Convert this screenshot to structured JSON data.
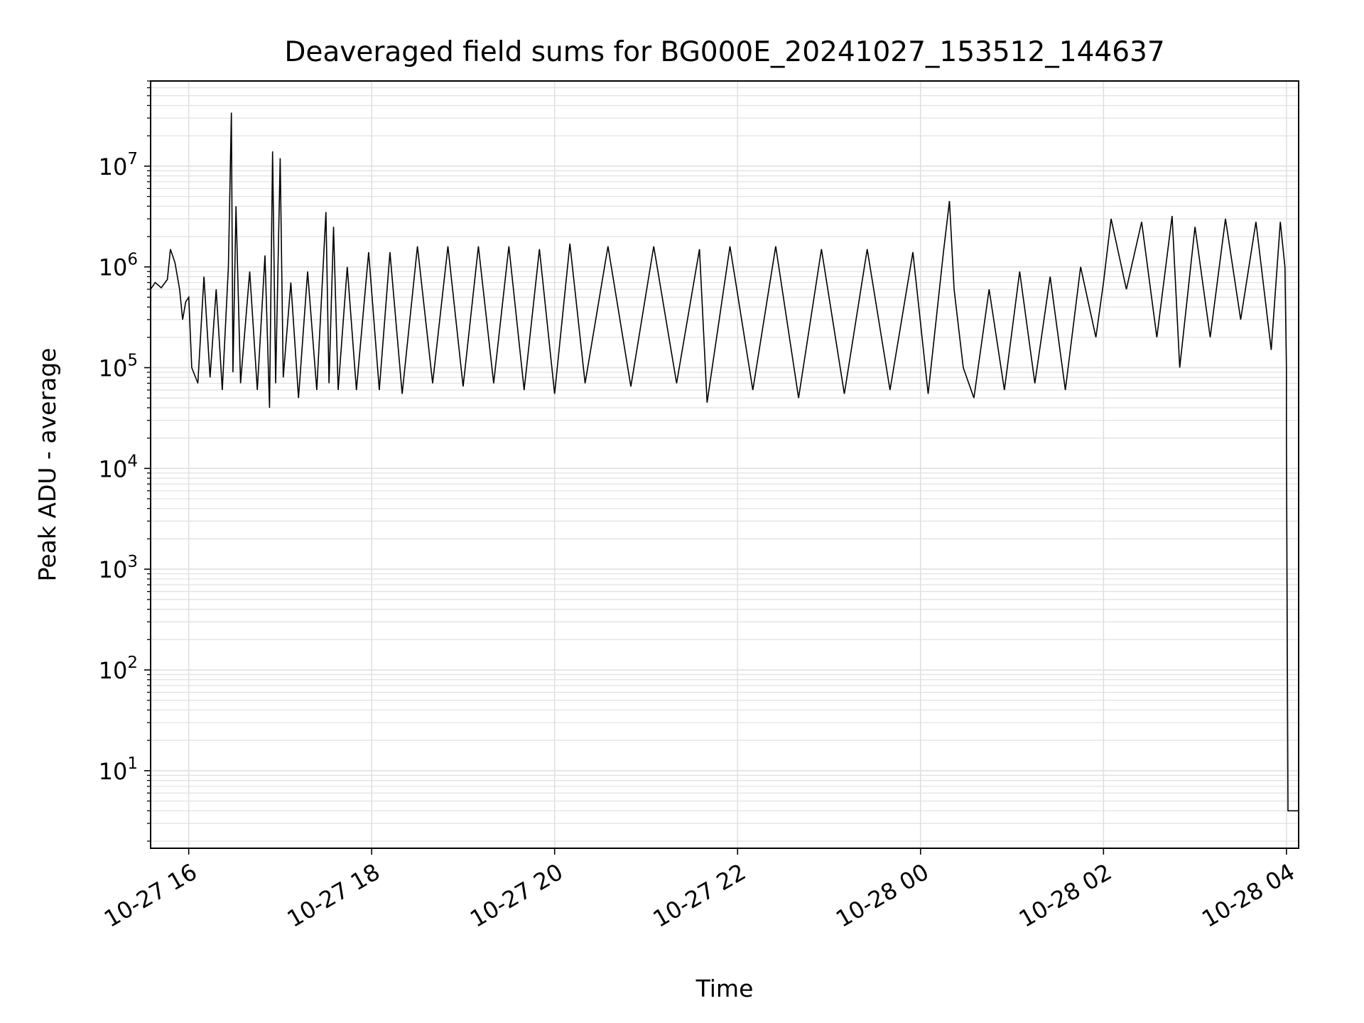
{
  "chart_data": {
    "type": "line",
    "title": "Deaveraged field sums for BG000E_20241027_153512_144637",
    "xlabel": "Time",
    "ylabel": "Peak ADU - average",
    "y_scale": "log",
    "grid": true,
    "legend": "none",
    "line_color": "#000000",
    "grid_color": "#e0e0e0",
    "xlim": [
      "2024-10-27 15:35",
      "2024-10-28 04:08"
    ],
    "ylim": [
      1.7,
      70000000
    ],
    "x_ticks": [
      {
        "value": "2024-10-27 16:00",
        "label": "10-27 16"
      },
      {
        "value": "2024-10-27 18:00",
        "label": "10-27 18"
      },
      {
        "value": "2024-10-27 20:00",
        "label": "10-27 20"
      },
      {
        "value": "2024-10-27 22:00",
        "label": "10-27 22"
      },
      {
        "value": "2024-10-28 00:00",
        "label": "10-28 00"
      },
      {
        "value": "2024-10-28 02:00",
        "label": "10-28 02"
      },
      {
        "value": "2024-10-28 04:00",
        "label": "10-28 04"
      }
    ],
    "y_ticks": [
      {
        "value": 10,
        "base": "10",
        "exp": "1"
      },
      {
        "value": 100,
        "base": "10",
        "exp": "2"
      },
      {
        "value": 1000,
        "base": "10",
        "exp": "3"
      },
      {
        "value": 10000,
        "base": "10",
        "exp": "4"
      },
      {
        "value": 100000,
        "base": "10",
        "exp": "5"
      },
      {
        "value": 1000000,
        "base": "10",
        "exp": "6"
      },
      {
        "value": 10000000,
        "base": "10",
        "exp": "7"
      }
    ],
    "series": [
      {
        "points": [
          [
            "2024-10-27 15:35",
            600000
          ],
          [
            "2024-10-27 15:38",
            700000
          ],
          [
            "2024-10-27 15:42",
            620000
          ],
          [
            "2024-10-27 15:46",
            750000
          ],
          [
            "2024-10-27 15:48",
            1500000
          ],
          [
            "2024-10-27 15:51",
            1100000
          ],
          [
            "2024-10-27 15:54",
            600000
          ],
          [
            "2024-10-27 15:56",
            300000
          ],
          [
            "2024-10-27 15:58",
            450000
          ],
          [
            "2024-10-27 16:00",
            500000
          ],
          [
            "2024-10-27 16:02",
            100000
          ],
          [
            "2024-10-27 16:06",
            70000
          ],
          [
            "2024-10-27 16:10",
            800000
          ],
          [
            "2024-10-27 16:14",
            80000
          ],
          [
            "2024-10-27 16:18",
            600000
          ],
          [
            "2024-10-27 16:22",
            60000
          ],
          [
            "2024-10-27 16:26",
            1000000
          ],
          [
            "2024-10-27 16:28",
            34000000
          ],
          [
            "2024-10-27 16:29",
            90000
          ],
          [
            "2024-10-27 16:31",
            4000000
          ],
          [
            "2024-10-27 16:34",
            70000
          ],
          [
            "2024-10-27 16:40",
            900000
          ],
          [
            "2024-10-27 16:45",
            60000
          ],
          [
            "2024-10-27 16:50",
            1300000
          ],
          [
            "2024-10-27 16:53",
            40000
          ],
          [
            "2024-10-27 16:55",
            14000000
          ],
          [
            "2024-10-27 16:57",
            70000
          ],
          [
            "2024-10-27 17:00",
            12000000
          ],
          [
            "2024-10-27 17:02",
            80000
          ],
          [
            "2024-10-27 17:07",
            700000
          ],
          [
            "2024-10-27 17:12",
            50000
          ],
          [
            "2024-10-27 17:18",
            900000
          ],
          [
            "2024-10-27 17:24",
            60000
          ],
          [
            "2024-10-27 17:30",
            3500000
          ],
          [
            "2024-10-27 17:32",
            70000
          ],
          [
            "2024-10-27 17:35",
            2500000
          ],
          [
            "2024-10-27 17:38",
            60000
          ],
          [
            "2024-10-27 17:44",
            1000000
          ],
          [
            "2024-10-27 17:50",
            60000
          ],
          [
            "2024-10-27 17:58",
            1400000
          ],
          [
            "2024-10-27 18:05",
            60000
          ],
          [
            "2024-10-27 18:12",
            1400000
          ],
          [
            "2024-10-27 18:20",
            55000
          ],
          [
            "2024-10-27 18:30",
            1600000
          ],
          [
            "2024-10-27 18:40",
            70000
          ],
          [
            "2024-10-27 18:50",
            1600000
          ],
          [
            "2024-10-27 19:00",
            65000
          ],
          [
            "2024-10-27 19:10",
            1600000
          ],
          [
            "2024-10-27 19:20",
            70000
          ],
          [
            "2024-10-27 19:30",
            1600000
          ],
          [
            "2024-10-27 19:40",
            60000
          ],
          [
            "2024-10-27 19:50",
            1500000
          ],
          [
            "2024-10-27 20:00",
            55000
          ],
          [
            "2024-10-27 20:10",
            1700000
          ],
          [
            "2024-10-27 20:20",
            70000
          ],
          [
            "2024-10-27 20:35",
            1600000
          ],
          [
            "2024-10-27 20:50",
            65000
          ],
          [
            "2024-10-27 21:05",
            1600000
          ],
          [
            "2024-10-27 21:20",
            70000
          ],
          [
            "2024-10-27 21:35",
            1500000
          ],
          [
            "2024-10-27 21:40",
            45000
          ],
          [
            "2024-10-27 21:55",
            1600000
          ],
          [
            "2024-10-27 22:10",
            60000
          ],
          [
            "2024-10-27 22:25",
            1600000
          ],
          [
            "2024-10-27 22:40",
            50000
          ],
          [
            "2024-10-27 22:55",
            1500000
          ],
          [
            "2024-10-27 23:10",
            55000
          ],
          [
            "2024-10-27 23:25",
            1500000
          ],
          [
            "2024-10-27 23:40",
            60000
          ],
          [
            "2024-10-27 23:55",
            1400000
          ],
          [
            "2024-10-28 00:05",
            55000
          ],
          [
            "2024-10-28 00:15",
            1400000
          ],
          [
            "2024-10-28 00:19",
            4500000
          ],
          [
            "2024-10-28 00:22",
            600000
          ],
          [
            "2024-10-28 00:28",
            100000
          ],
          [
            "2024-10-28 00:35",
            50000
          ],
          [
            "2024-10-28 00:45",
            600000
          ],
          [
            "2024-10-28 00:55",
            60000
          ],
          [
            "2024-10-28 01:05",
            900000
          ],
          [
            "2024-10-28 01:15",
            70000
          ],
          [
            "2024-10-28 01:25",
            800000
          ],
          [
            "2024-10-28 01:35",
            60000
          ],
          [
            "2024-10-28 01:45",
            1000000
          ],
          [
            "2024-10-28 01:55",
            200000
          ],
          [
            "2024-10-28 02:00",
            700000
          ],
          [
            "2024-10-28 02:05",
            3000000
          ],
          [
            "2024-10-28 02:15",
            600000
          ],
          [
            "2024-10-28 02:25",
            2800000
          ],
          [
            "2024-10-28 02:35",
            200000
          ],
          [
            "2024-10-28 02:45",
            3200000
          ],
          [
            "2024-10-28 02:50",
            100000
          ],
          [
            "2024-10-28 03:00",
            2500000
          ],
          [
            "2024-10-28 03:10",
            200000
          ],
          [
            "2024-10-28 03:20",
            3000000
          ],
          [
            "2024-10-28 03:30",
            300000
          ],
          [
            "2024-10-28 03:40",
            2800000
          ],
          [
            "2024-10-28 03:50",
            150000
          ],
          [
            "2024-10-28 03:56",
            2800000
          ],
          [
            "2024-10-28 03:59",
            1000000
          ],
          [
            "2024-10-28 04:00",
            100000
          ],
          [
            "2024-10-28 04:00",
            22000
          ],
          [
            "2024-10-28 04:01",
            4
          ],
          [
            "2024-10-28 04:03",
            4
          ],
          [
            "2024-10-28 04:05",
            4
          ],
          [
            "2024-10-28 04:08",
            4
          ]
        ]
      }
    ]
  }
}
